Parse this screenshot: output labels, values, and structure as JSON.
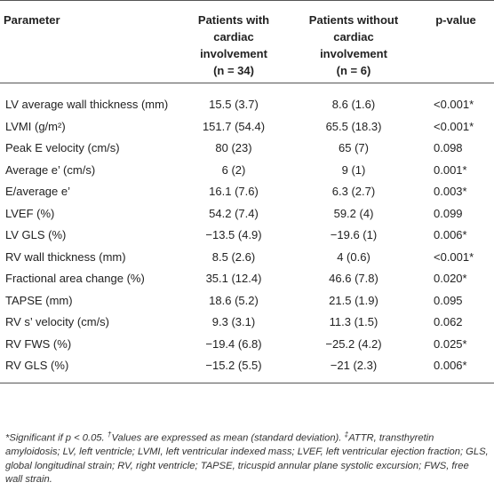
{
  "table": {
    "headers": {
      "parameter": "Parameter",
      "with_line1": "Patients with",
      "with_line2": "cardiac",
      "with_line3": "involvement",
      "with_n": "(n = 34)",
      "without_line1": "Patients without",
      "without_line2": "cardiac",
      "without_line3": "involvement",
      "without_n": "(n = 6)",
      "pvalue": "p-value"
    },
    "rows": [
      {
        "param": "LV average wall thickness (mm)",
        "with": "15.5 (3.7)",
        "without": "8.6 (1.6)",
        "p": "<0.001*"
      },
      {
        "param": "LVMI (g/m²)",
        "with": "151.7 (54.4)",
        "without": "65.5 (18.3)",
        "p": "<0.001*"
      },
      {
        "param": "Peak E velocity (cm/s)",
        "with": "80 (23)",
        "without": "65 (7)",
        "p": "0.098"
      },
      {
        "param": "Average e’ (cm/s)",
        "with": "6 (2)",
        "without": "9 (1)",
        "p": "0.001*"
      },
      {
        "param": "E/average e’",
        "with": "16.1 (7.6)",
        "without": "6.3 (2.7)",
        "p": "0.003*"
      },
      {
        "param": "LVEF (%)",
        "with": "54.2 (7.4)",
        "without": "59.2 (4)",
        "p": "0.099"
      },
      {
        "param": "LV GLS (%)",
        "with": "−13.5 (4.9)",
        "without": "−19.6 (1)",
        "p": "0.006*"
      },
      {
        "param": "RV wall thickness (mm)",
        "with": "8.5 (2.6)",
        "without": "4 (0.6)",
        "p": "<0.001*"
      },
      {
        "param": "Fractional area change (%)",
        "with": "35.1 (12.4)",
        "without": "46.6 (7.8)",
        "p": "0.020*"
      },
      {
        "param": "TAPSE (mm)",
        "with": "18.6 (5.2)",
        "without": "21.5 (1.9)",
        "p": "0.095"
      },
      {
        "param": "RV s’ velocity (cm/s)",
        "with": "9.3 (3.1)",
        "without": "11.3 (1.5)",
        "p": "0.062"
      },
      {
        "param": "RV FWS (%)",
        "with": "−19.4 (6.8)",
        "without": "−25.2 (4.2)",
        "p": "0.025*"
      },
      {
        "param": "RV GLS (%)",
        "with": "−15.2 (5.5)",
        "without": "−21 (2.3)",
        "p": "0.006*"
      }
    ]
  },
  "footnote": {
    "sig": "*Significant if p < 0.05. ",
    "mean_mark": "†",
    "mean": "Values are expressed as mean (standard deviation). ",
    "abbr_mark": "‡",
    "abbr": "ATTR, transthyretin amyloidosis; LV, left ventricle; LVMI, left ventricular indexed mass; LVEF, left ventricular ejection fraction; GLS, global longitudinal strain; RV, right ventricle; TAPSE, tricuspid annular plane systolic excursion; FWS, free wall strain."
  }
}
